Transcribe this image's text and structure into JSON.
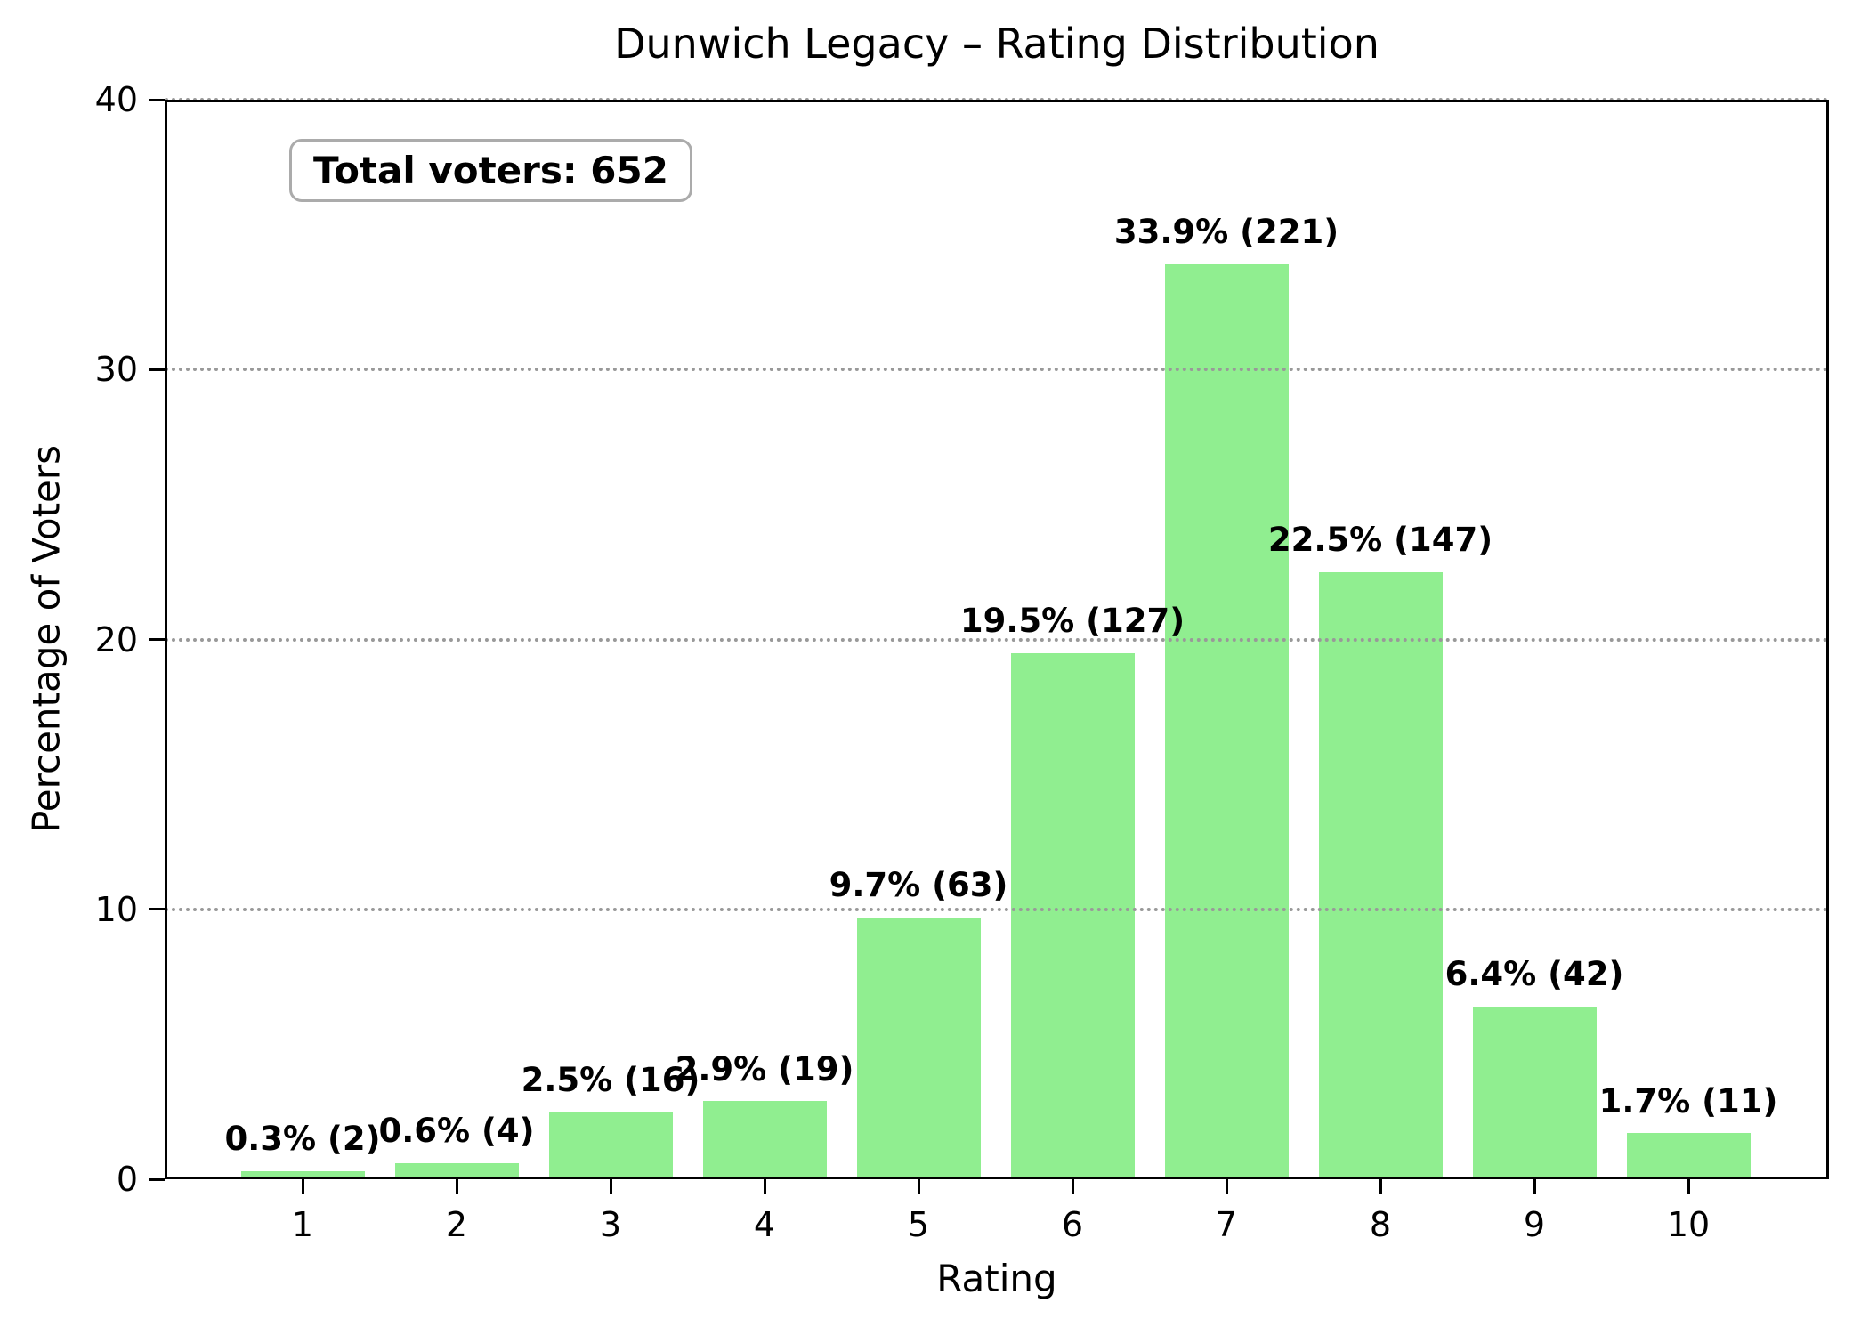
{
  "chart_data": {
    "type": "bar",
    "title": "Dunwich Legacy – Rating Distribution",
    "xlabel": "Rating",
    "ylabel": "Percentage of Voters",
    "categories": [
      "1",
      "2",
      "3",
      "4",
      "5",
      "6",
      "7",
      "8",
      "9",
      "10"
    ],
    "values": [
      0.3,
      0.6,
      2.5,
      2.9,
      9.7,
      19.5,
      33.9,
      22.5,
      6.4,
      1.7
    ],
    "counts": [
      2,
      4,
      16,
      19,
      63,
      127,
      221,
      147,
      42,
      11
    ],
    "bar_labels": [
      "0.3% (2)",
      "0.6% (4)",
      "2.5% (16)",
      "2.9% (19)",
      "9.7% (63)",
      "19.5% (127)",
      "33.9% (221)",
      "22.5% (147)",
      "6.4% (42)",
      "1.7% (11)"
    ],
    "total_voters": 652,
    "ylim": [
      0,
      40
    ],
    "yticks": [
      0,
      10,
      20,
      30,
      40
    ],
    "grid": {
      "axis": "y",
      "style": "dotted",
      "at": [
        10,
        20,
        30,
        40
      ],
      "color": "#999999",
      "above_bars": true
    },
    "legend": null,
    "bar_color": "#90EE90",
    "frame": "full box, black spines"
  },
  "annotation_box": {
    "text": "Total voters: 652"
  }
}
